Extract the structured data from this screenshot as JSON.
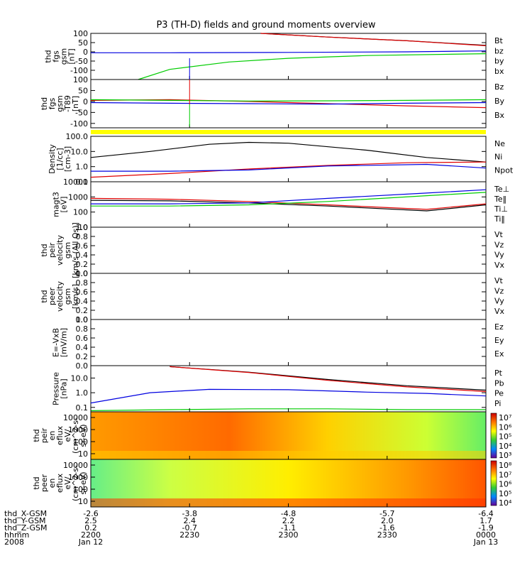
{
  "title": "P3 (TH-D) fields and ground moments overview",
  "colors": {
    "black": "#000000",
    "red": "#e00000",
    "green": "#00cc00",
    "blue": "#0000e0",
    "yellow": "#ffff00"
  },
  "chart_data": [
    {
      "id": "fgs",
      "type": "line",
      "ylabel_lines": [
        "thd",
        "fgs",
        "gsm",
        "[nT]"
      ],
      "ylim": [
        -150,
        100
      ],
      "yticks": [
        "100",
        "50",
        "0",
        "-50",
        "-100"
      ],
      "yvalues": [
        100,
        50,
        0,
        -50,
        -100
      ],
      "legend": [
        {
          "name": "Bt",
          "color": "#000000"
        },
        {
          "name": "bz",
          "color": "#e00000"
        },
        {
          "name": "by",
          "color": "#00cc00"
        },
        {
          "name": "bx",
          "color": "#0000e0"
        }
      ],
      "series": [
        {
          "name": "Bt",
          "color": "#000000",
          "x": [
            0.43,
            0.6,
            0.8,
            1.0
          ],
          "y": [
            100,
            80,
            60,
            35
          ]
        },
        {
          "name": "bz",
          "color": "#e00000",
          "x": [
            0.43,
            0.6,
            0.8,
            1.0
          ],
          "y": [
            100,
            80,
            60,
            33
          ]
        },
        {
          "name": "by",
          "color": "#00cc00",
          "x": [
            0.12,
            0.2,
            0.35,
            0.5,
            0.7,
            1.0
          ],
          "y": [
            -150,
            -95,
            -55,
            -35,
            -20,
            -10
          ]
        },
        {
          "name": "bx",
          "color": "#0000e0",
          "x": [
            0.0,
            0.2,
            0.5,
            0.8,
            1.0
          ],
          "y": [
            -5,
            -5,
            -3,
            0,
            5
          ]
        }
      ]
    },
    {
      "id": "fgs_t89",
      "type": "line",
      "ylabel_lines": [
        "thd",
        "fgs",
        "gsm",
        "-T89",
        "[nT]"
      ],
      "ylim": [
        -120,
        100
      ],
      "yticks": [
        "100",
        "50",
        "0",
        "-50",
        "-100"
      ],
      "yvalues": [
        100,
        50,
        0,
        -50,
        -100
      ],
      "legend": [
        {
          "name": "Bz",
          "color": "#e00000"
        },
        {
          "name": "By",
          "color": "#00cc00"
        },
        {
          "name": "Bx",
          "color": "#0000e0"
        }
      ],
      "series": [
        {
          "name": "Bz",
          "color": "#e00000",
          "x": [
            0.0,
            0.2,
            0.4,
            0.6,
            0.8,
            1.0
          ],
          "y": [
            5,
            8,
            0,
            -10,
            -20,
            -28
          ]
        },
        {
          "name": "By",
          "color": "#00cc00",
          "x": [
            0.0,
            0.2,
            0.4,
            0.6,
            0.8,
            1.0
          ],
          "y": [
            8,
            5,
            2,
            3,
            5,
            8
          ]
        },
        {
          "name": "Bx",
          "color": "#0000e0",
          "x": [
            0.0,
            0.2,
            0.4,
            0.6,
            0.8,
            1.0
          ],
          "y": [
            -5,
            -8,
            -10,
            -12,
            -8,
            -5
          ]
        }
      ]
    },
    {
      "id": "density",
      "type": "line",
      "scale": "log",
      "ylabel_lines": [
        "Density",
        "[1/cc]",
        "[cm-3]"
      ],
      "ylim": [
        0.1,
        100
      ],
      "yticks": [
        "100.0",
        "10.0",
        "1.0",
        "0.1"
      ],
      "yvalues": [
        100,
        10,
        1,
        0.1
      ],
      "legend": [
        {
          "name": "Ne",
          "color": "#e00000"
        },
        {
          "name": "Ni",
          "color": "#000000"
        },
        {
          "name": "Npot",
          "color": "#0000e0"
        }
      ],
      "series": [
        {
          "name": "Ni",
          "color": "#000000",
          "x": [
            0.0,
            0.15,
            0.3,
            0.4,
            0.5,
            0.7,
            0.85,
            1.0
          ],
          "y": [
            4,
            10,
            30,
            40,
            35,
            12,
            4,
            2
          ]
        },
        {
          "name": "Ne",
          "color": "#e00000",
          "x": [
            0.0,
            0.2,
            0.4,
            0.6,
            0.8,
            1.0
          ],
          "y": [
            0.2,
            0.35,
            0.7,
            1.2,
            1.8,
            2.0
          ]
        },
        {
          "name": "Npot",
          "color": "#0000e0",
          "x": [
            0.0,
            0.2,
            0.4,
            0.6,
            0.85,
            1.0
          ],
          "y": [
            0.5,
            0.5,
            0.6,
            1.1,
            1.4,
            0.8
          ]
        }
      ]
    },
    {
      "id": "temp",
      "type": "line",
      "scale": "log",
      "ylabel_lines": [
        "magt3",
        "[eV]"
      ],
      "ylim": [
        10,
        10000
      ],
      "yticks": [
        "10000",
        "1000",
        "100",
        "10"
      ],
      "yvalues": [
        10000,
        1000,
        100,
        10
      ],
      "legend": [
        {
          "name": "Te⊥",
          "color": "#e00000"
        },
        {
          "name": "Te‖",
          "color": "#000000"
        },
        {
          "name": "Ti⊥",
          "color": "#0000e0"
        },
        {
          "name": "Ti‖",
          "color": "#00cc00"
        }
      ],
      "series": [
        {
          "name": "Te⊥",
          "color": "#e00000",
          "x": [
            0.0,
            0.2,
            0.4,
            0.6,
            0.85,
            1.0
          ],
          "y": [
            800,
            700,
            500,
            300,
            150,
            350
          ]
        },
        {
          "name": "Te‖",
          "color": "#000000",
          "x": [
            0.0,
            0.2,
            0.4,
            0.6,
            0.85,
            1.0
          ],
          "y": [
            600,
            550,
            400,
            250,
            120,
            300
          ]
        },
        {
          "name": "Ti⊥",
          "color": "#0000e0",
          "x": [
            0.0,
            0.2,
            0.4,
            0.6,
            0.85,
            1.0
          ],
          "y": [
            350,
            350,
            400,
            800,
            1800,
            3000
          ]
        },
        {
          "name": "Ti‖",
          "color": "#00cc00",
          "x": [
            0.0,
            0.2,
            0.4,
            0.6,
            0.85,
            1.0
          ],
          "y": [
            250,
            250,
            300,
            500,
            1200,
            2000
          ]
        }
      ]
    },
    {
      "id": "peir_v",
      "type": "line",
      "ylabel_lines": [
        "thd",
        "peir",
        "velocity",
        "gsm",
        "[km/s (All Qs)]"
      ],
      "ylim": [
        0,
        1
      ],
      "yticks": [
        "1.0",
        "0.8",
        "0.6",
        "0.4",
        "0.2",
        "0.0"
      ],
      "yvalues": [
        1,
        0.8,
        0.6,
        0.4,
        0.2,
        0
      ],
      "legend": [
        {
          "name": "Vt",
          "color": "#000000"
        },
        {
          "name": "Vz",
          "color": "#e00000"
        },
        {
          "name": "Vy",
          "color": "#00cc00"
        },
        {
          "name": "Vx",
          "color": "#0000e0"
        }
      ],
      "series": []
    },
    {
      "id": "peer_v",
      "type": "line",
      "ylabel_lines": [
        "thd",
        "peer",
        "velocity",
        "gsm",
        "[km/s]"
      ],
      "ylim": [
        0,
        1
      ],
      "yticks": [
        "1.0",
        "0.8",
        "0.6",
        "0.4",
        "0.2",
        "0.0"
      ],
      "yvalues": [
        1,
        0.8,
        0.6,
        0.4,
        0.2,
        0
      ],
      "legend": [
        {
          "name": "Vt",
          "color": "#000000"
        },
        {
          "name": "Vz",
          "color": "#e00000"
        },
        {
          "name": "Vy",
          "color": "#00cc00"
        },
        {
          "name": "Vx",
          "color": "#0000e0"
        }
      ],
      "series": []
    },
    {
      "id": "efield",
      "type": "line",
      "ylabel_lines": [
        "E=-VxB",
        "[mV/m]"
      ],
      "ylim": [
        0,
        1
      ],
      "yticks": [
        "1.0",
        "0.8",
        "0.6",
        "0.4",
        "0.2",
        "0.0"
      ],
      "yvalues": [
        1,
        0.8,
        0.6,
        0.4,
        0.2,
        0
      ],
      "legend": [
        {
          "name": "Ez",
          "color": "#e00000"
        },
        {
          "name": "Ey",
          "color": "#00cc00"
        },
        {
          "name": "Ex",
          "color": "#0000e0"
        }
      ],
      "series": []
    },
    {
      "id": "pressure",
      "type": "line",
      "scale": "log",
      "ylabel_lines": [
        "Pressure",
        "[nPa]"
      ],
      "ylim": [
        0.05,
        70
      ],
      "yticks": [
        "10.0",
        "1.0",
        "0.1"
      ],
      "yvalues": [
        10,
        1,
        0.1
      ],
      "legend": [
        {
          "name": "Pt",
          "color": "#000000"
        },
        {
          "name": "Pb",
          "color": "#e00000"
        },
        {
          "name": "Pe",
          "color": "#00cc00"
        },
        {
          "name": "Pi",
          "color": "#0000e0"
        }
      ],
      "series": [
        {
          "name": "Pt",
          "color": "#000000",
          "x": [
            0.2,
            0.4,
            0.6,
            0.8,
            1.0
          ],
          "y": [
            60,
            25,
            8,
            3,
            1.5
          ]
        },
        {
          "name": "Pb",
          "color": "#e00000",
          "x": [
            0.2,
            0.4,
            0.6,
            0.8,
            1.0
          ],
          "y": [
            60,
            24,
            7,
            2.5,
            1.2
          ]
        },
        {
          "name": "Pi",
          "color": "#0000e0",
          "x": [
            0.0,
            0.15,
            0.3,
            0.5,
            0.7,
            0.85,
            1.0
          ],
          "y": [
            0.2,
            1.0,
            1.7,
            1.6,
            1.1,
            0.9,
            0.6
          ]
        },
        {
          "name": "Pe",
          "color": "#00cc00",
          "x": [
            0.0,
            0.2,
            0.4,
            0.6,
            0.8,
            1.0
          ],
          "y": [
            0.06,
            0.07,
            0.08,
            0.08,
            0.07,
            0.07
          ]
        }
      ]
    },
    {
      "id": "peir_en",
      "type": "heatmap",
      "ylabel_lines": [
        "thd",
        "peir",
        "en",
        "eflux",
        "eV/",
        "(cm^2-s-",
        "sr-eV)"
      ],
      "yticks": [
        "10000",
        "1000",
        "100",
        "10"
      ],
      "yvalues": [
        10000,
        1000,
        100,
        10
      ],
      "colorbar_ticks": [
        "10⁷",
        "10⁶",
        "10⁵",
        "10⁴",
        "10³"
      ]
    },
    {
      "id": "peer_en",
      "type": "heatmap",
      "ylabel_lines": [
        "thd",
        "peer",
        "en",
        "eflux",
        "eV/",
        "(cm^2-s-",
        "sr-eV)"
      ],
      "yticks": [
        "10000",
        "1000",
        "100",
        "10"
      ],
      "yvalues": [
        10000,
        1000,
        100,
        10
      ],
      "colorbar_ticks": [
        "10⁸",
        "10⁷",
        "10⁶",
        "10⁵",
        "10⁴"
      ]
    }
  ],
  "xaxis": {
    "row_labels": [
      "thd_X-GSM",
      "thd_Y-GSM",
      "thd_Z-GSM",
      "hhmm",
      "2008"
    ],
    "ticks": [
      {
        "x": 0.0,
        "rows": [
          "-2.6",
          "2.5",
          "0.2",
          "2200",
          "Jan 12"
        ]
      },
      {
        "x": 0.25,
        "rows": [
          "-3.8",
          "2.4",
          "-0.7",
          "2230",
          ""
        ]
      },
      {
        "x": 0.5,
        "rows": [
          "-4.8",
          "2.2",
          "-1.1",
          "2300",
          ""
        ]
      },
      {
        "x": 0.75,
        "rows": [
          "-5.7",
          "2.0",
          "-1.6",
          "2330",
          ""
        ]
      },
      {
        "x": 1.0,
        "rows": [
          "-6.4",
          "1.7",
          "-1.9",
          "0000",
          "Jan 13"
        ]
      }
    ]
  }
}
